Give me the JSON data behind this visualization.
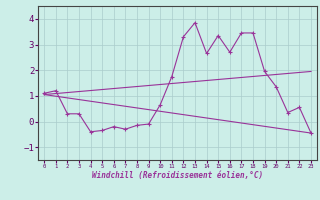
{
  "xlabel": "Windchill (Refroidissement éolien,°C)",
  "background_color": "#cceee8",
  "grid_color": "#aacccc",
  "line_color": "#993399",
  "xlim": [
    -0.5,
    23.5
  ],
  "ylim": [
    -1.5,
    4.5
  ],
  "yticks": [
    -1,
    0,
    1,
    2,
    3,
    4
  ],
  "xticks": [
    0,
    1,
    2,
    3,
    4,
    5,
    6,
    7,
    8,
    9,
    10,
    11,
    12,
    13,
    14,
    15,
    16,
    17,
    18,
    19,
    20,
    21,
    22,
    23
  ],
  "series1_x": [
    0,
    1,
    2,
    3,
    4,
    5,
    6,
    7,
    8,
    9,
    10,
    11,
    12,
    13,
    14,
    15,
    16,
    17,
    18,
    19,
    20,
    21,
    22,
    23
  ],
  "series1_y": [
    1.1,
    1.2,
    0.3,
    0.3,
    -0.4,
    -0.35,
    -0.2,
    -0.3,
    -0.15,
    -0.1,
    0.65,
    1.75,
    3.3,
    3.85,
    2.65,
    3.35,
    2.7,
    3.45,
    3.45,
    1.95,
    1.35,
    0.35,
    0.55,
    -0.45
  ],
  "series2_x": [
    0,
    23
  ],
  "series2_y": [
    1.05,
    1.95
  ],
  "series3_x": [
    0,
    23
  ],
  "series3_y": [
    1.05,
    -0.45
  ]
}
